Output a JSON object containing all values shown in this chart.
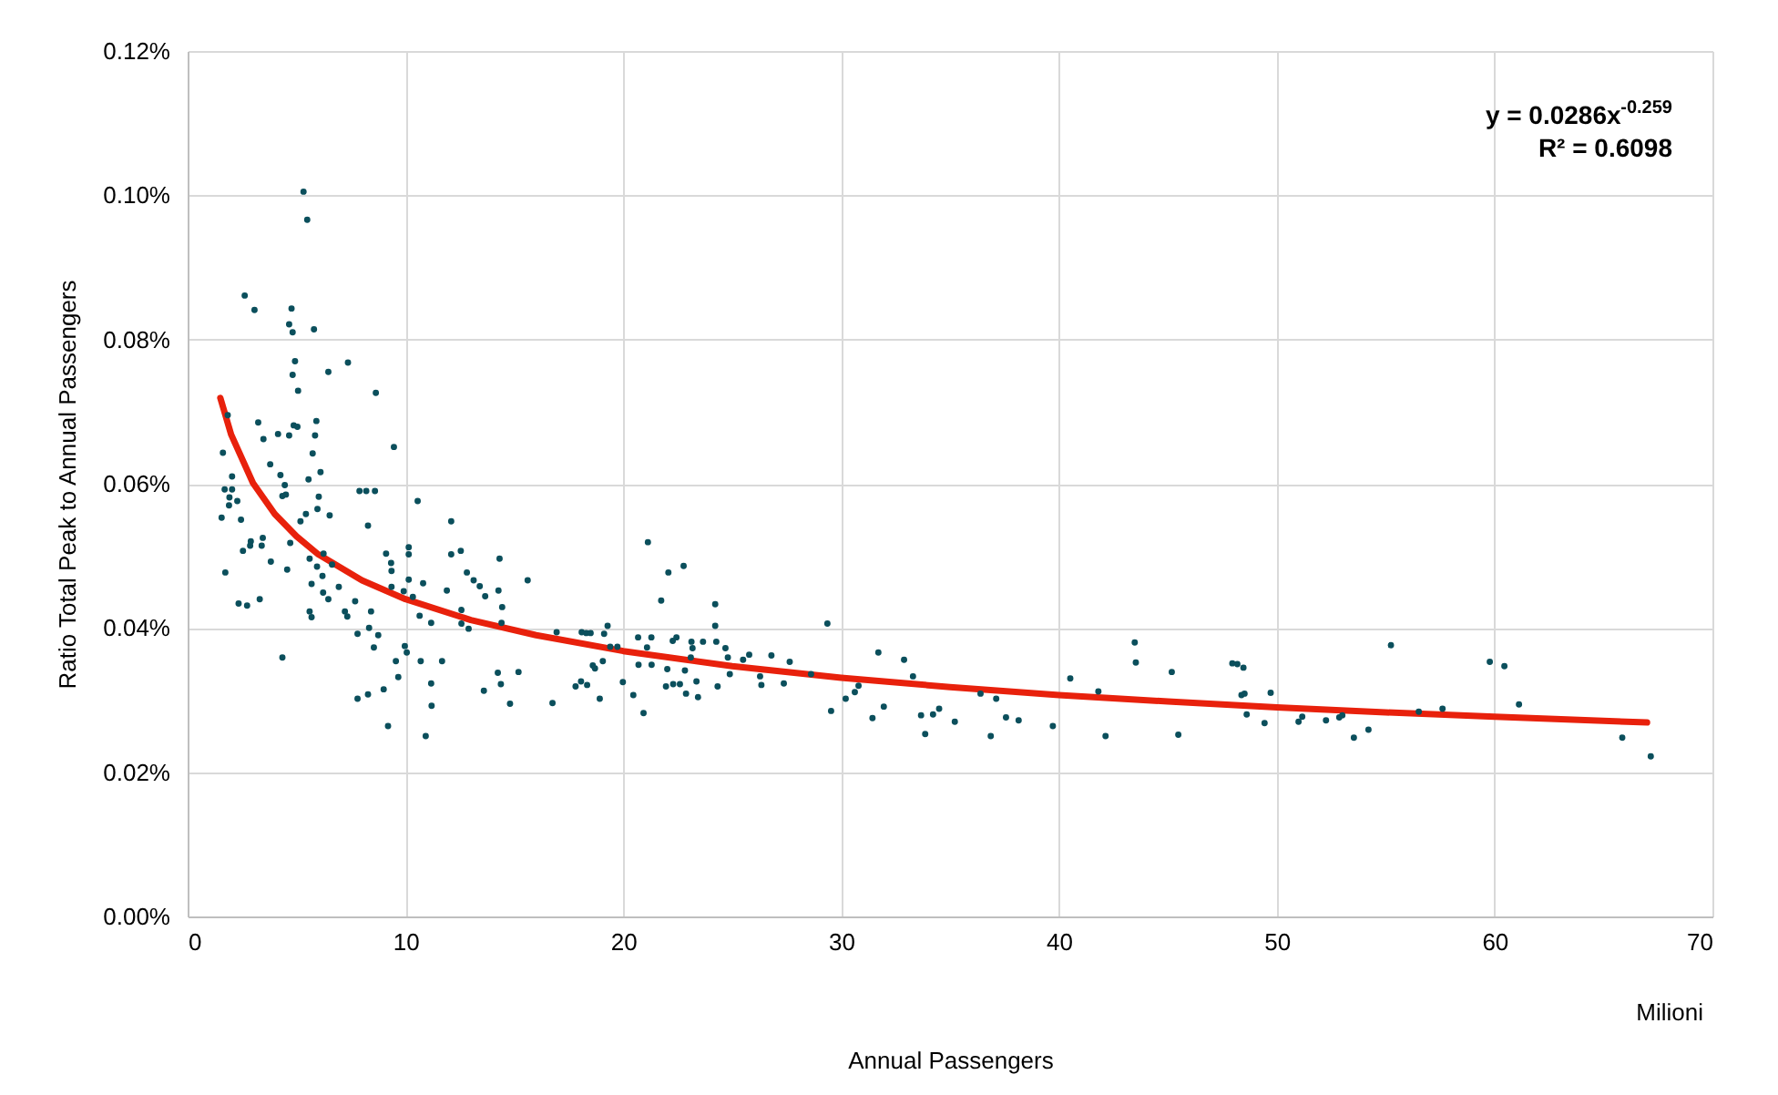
{
  "chart_data": {
    "type": "scatter",
    "xlabel": "Annual Passengers",
    "ylabel": "Ratio Total Peak to Annual Passengers",
    "annotations": [
      "y = 0.0286x$^{-0.259}$",
      "R² = 0.6098",
      "Milioni"
    ],
    "xlim": [
      0,
      70
    ],
    "xticks": [
      0,
      10,
      20,
      30,
      40,
      50,
      60,
      70
    ],
    "ylim": [
      0,
      0.12
    ],
    "yticks": [
      {
        "value": 0,
        "label": "0.00%"
      },
      {
        "value": 0.02,
        "label": "0.02%"
      },
      {
        "value": 0.04,
        "label": "0.04%"
      },
      {
        "value": 0.06,
        "label": "0.06%"
      },
      {
        "value": 0.08,
        "label": "0.08%"
      },
      {
        "value": 0.1,
        "label": "0.10%"
      },
      {
        "value": 0.12,
        "label": "0.12%"
      }
    ],
    "grid": true,
    "series": [
      {
        "color": "#0b4f5c",
        "marker": "circle",
        "x": [
          5.32,
          5.49,
          2.62,
          3.07,
          4.77,
          4.66,
          4.82,
          5.8,
          4.93,
          4.82,
          7.36,
          5.07,
          6.46,
          8.64,
          1.84,
          3.24,
          5.91,
          4.87,
          5.04,
          4.15,
          4.66,
          5.85,
          3.48,
          9.47,
          1.62,
          5.74,
          3.79,
          6.1,
          2.04,
          4.26,
          5.55,
          1.7,
          2.04,
          4.46,
          7.89,
          8.2,
          8.6,
          1.92,
          2.28,
          4.35,
          4.51,
          6.02,
          10.56,
          1.9,
          5.96,
          5.43,
          6.52,
          1.56,
          2.45,
          5.18,
          12.1,
          8.28,
          2.9,
          3.45,
          2.87,
          3.4,
          2.54,
          4.71,
          10.15,
          12.1,
          12.54,
          9.11,
          10.15,
          6.24,
          3.82,
          5.6,
          14.32,
          9.34,
          5.94,
          6.63,
          4.57,
          1.73,
          9.36,
          6.19,
          12.82,
          10.15,
          13.13,
          5.69,
          6.94,
          9.36,
          10.81,
          9.92,
          13.41,
          11.9,
          6.22,
          14.27,
          13.66,
          10.34,
          6.46,
          3.31,
          7.69,
          2.34,
          2.73,
          14.44,
          8.42,
          12.57,
          5.6,
          7.22,
          5.69,
          7.33,
          10.65,
          11.18,
          12.57,
          14.41,
          12.9,
          8.33,
          7.8,
          8.75,
          8.55,
          9.97,
          10.06,
          4.35,
          9.56,
          10.7,
          11.68,
          9.67,
          14.24,
          11.18,
          14.38,
          9.0,
          13.6,
          8.28,
          7.8,
          11.2,
          14.8,
          9.2,
          10.93,
          15.61,
          21.13,
          22.07,
          22.77,
          21.74,
          24.22,
          24.22,
          29.37,
          16.94,
          18.09,
          18.3,
          18.5,
          19.12,
          19.28,
          19.4,
          19.73,
          20.68,
          21.29,
          22.27,
          22.44,
          23.13,
          23.66,
          24.27,
          23.18,
          24.69,
          21.09,
          25.78,
          26.8,
          24.8,
          25.5,
          23.1,
          27.64,
          20.7,
          21.3,
          18.6,
          18.7,
          19.06,
          15.19,
          19.98,
          22.02,
          22.83,
          23.36,
          24.33,
          21.96,
          22.29,
          22.6,
          24.89,
          26.28,
          26.34,
          27.37,
          28.62,
          17.81,
          18.06,
          18.34,
          16.75,
          18.92,
          20.46,
          22.88,
          23.43,
          20.93,
          31.71,
          32.89,
          33.3,
          30.8,
          30.21,
          30.63,
          29.54,
          31.96,
          31.44,
          33.67,
          33.86,
          34.22,
          34.5,
          35.22,
          36.87,
          36.4,
          37.12,
          37.57,
          38.15,
          39.72,
          40.52,
          41.81,
          42.14,
          43.48,
          43.53,
          45.18,
          45.48,
          47.96,
          48.19,
          48.47,
          48.38,
          48.52,
          48.62,
          49.44,
          49.72,
          51.0,
          51.17,
          52.26,
          52.87,
          53.01,
          53.54,
          54.21,
          55.24,
          56.52,
          57.61,
          59.78,
          60.45,
          61.12,
          65.86,
          67.17
        ],
        "values": [
          0.1005,
          0.0966,
          0.0861,
          0.0841,
          0.0843,
          0.0821,
          0.081,
          0.0814,
          0.077,
          0.0751,
          0.0768,
          0.0729,
          0.0755,
          0.0726,
          0.0695,
          0.0685,
          0.0687,
          0.0681,
          0.0679,
          0.0669,
          0.0667,
          0.0667,
          0.0662,
          0.0651,
          0.0643,
          0.0642,
          0.0627,
          0.0616,
          0.061,
          0.0612,
          0.0606,
          0.0592,
          0.0592,
          0.0598,
          0.059,
          0.059,
          0.059,
          0.0581,
          0.0576,
          0.0583,
          0.0585,
          0.0582,
          0.0576,
          0.057,
          0.0565,
          0.0558,
          0.0556,
          0.0553,
          0.055,
          0.0548,
          0.0548,
          0.0542,
          0.052,
          0.0525,
          0.0514,
          0.0514,
          0.0507,
          0.0518,
          0.0512,
          0.0502,
          0.0507,
          0.0503,
          0.0502,
          0.0503,
          0.0492,
          0.0496,
          0.0496,
          0.049,
          0.0485,
          0.0488,
          0.0481,
          0.0477,
          0.0479,
          0.0472,
          0.0477,
          0.0467,
          0.0466,
          0.0461,
          0.0457,
          0.0457,
          0.0462,
          0.0451,
          0.0458,
          0.0452,
          0.0449,
          0.0452,
          0.0444,
          0.0443,
          0.044,
          0.044,
          0.0437,
          0.0434,
          0.0431,
          0.0429,
          0.0423,
          0.0425,
          0.0423,
          0.0423,
          0.0415,
          0.0416,
          0.0417,
          0.0407,
          0.0406,
          0.0407,
          0.0399,
          0.04,
          0.0392,
          0.039,
          0.0373,
          0.0375,
          0.0366,
          0.0359,
          0.0354,
          0.0354,
          0.0354,
          0.0332,
          0.0338,
          0.0323,
          0.0322,
          0.0315,
          0.0313,
          0.0308,
          0.0302,
          0.0292,
          0.0295,
          0.0264,
          0.025,
          0.0466,
          0.0519,
          0.0477,
          0.0486,
          0.0438,
          0.0433,
          0.0403,
          0.0406,
          0.0394,
          0.0394,
          0.0393,
          0.0393,
          0.0392,
          0.0403,
          0.0374,
          0.0374,
          0.0387,
          0.0387,
          0.0382,
          0.0387,
          0.0381,
          0.0381,
          0.0381,
          0.0372,
          0.0372,
          0.0373,
          0.0363,
          0.0362,
          0.0359,
          0.0356,
          0.0359,
          0.0353,
          0.0349,
          0.0349,
          0.0348,
          0.0344,
          0.0354,
          0.0339,
          0.0325,
          0.0343,
          0.0341,
          0.0326,
          0.0319,
          0.0319,
          0.0322,
          0.0322,
          0.0336,
          0.0333,
          0.0321,
          0.0323,
          0.0336,
          0.0319,
          0.0326,
          0.0321,
          0.0296,
          0.0302,
          0.0307,
          0.0309,
          0.0304,
          0.0282,
          0.0366,
          0.0356,
          0.0333,
          0.032,
          0.0302,
          0.0311,
          0.0285,
          0.0291,
          0.0275,
          0.0279,
          0.0253,
          0.028,
          0.0288,
          0.027,
          0.025,
          0.0309,
          0.0302,
          0.0276,
          0.0272,
          0.0264,
          0.033,
          0.0312,
          0.025,
          0.038,
          0.0352,
          0.0339,
          0.0252,
          0.0351,
          0.035,
          0.0345,
          0.0307,
          0.0309,
          0.028,
          0.0268,
          0.031,
          0.027,
          0.0277,
          0.0272,
          0.0276,
          0.0279,
          0.0248,
          0.0259,
          0.0376,
          0.0284,
          0.0288,
          0.0353,
          0.0347,
          0.0294,
          0.0248,
          0.0222
        ]
      },
      {
        "type": "line",
        "color": "#e8210c",
        "line_style": "solid",
        "x": [
          1.5,
          2,
          3,
          4,
          5,
          6,
          8,
          10,
          13,
          16,
          20,
          25,
          30,
          35,
          40,
          45,
          50,
          55,
          60,
          67
        ],
        "values": [
          0.0719,
          0.0668,
          0.0601,
          0.0558,
          0.0527,
          0.0502,
          0.0466,
          0.044,
          0.0411,
          0.039,
          0.0368,
          0.0347,
          0.0331,
          0.0318,
          0.0307,
          0.0298,
          0.029,
          0.0283,
          0.0277,
          0.0269
        ]
      }
    ]
  }
}
